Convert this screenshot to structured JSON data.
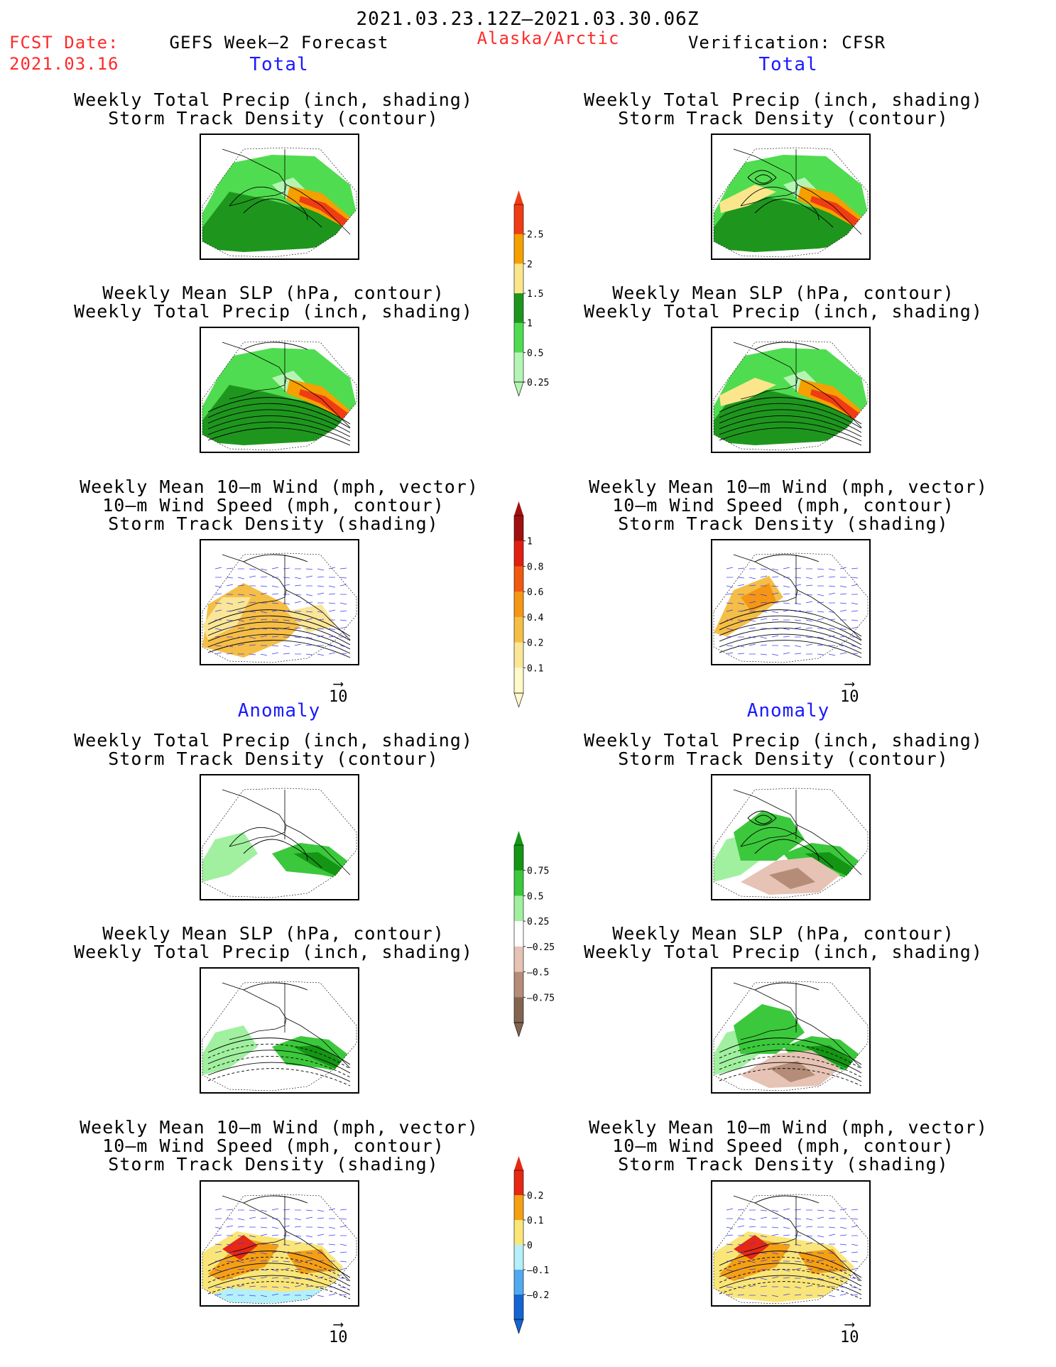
{
  "header": {
    "period": "2021.03.23.12Z–2021.03.30.06Z",
    "fcst_label": "FCST Date:",
    "fcst_date": "2021.03.16",
    "left_title": "GEFS Week–2 Forecast",
    "region": "Alaska/Arctic",
    "right_title": "Verification: CFSR"
  },
  "sections": {
    "total": "Total",
    "anomaly": "Anomaly"
  },
  "titles": {
    "precip_track": [
      "Weekly Total Precip (inch, shading)",
      "Storm Track Density (contour)"
    ],
    "slp_precip": [
      "Weekly Mean SLP (hPa, contour)",
      "Weekly Total Precip (inch, shading)"
    ],
    "wind": [
      "Weekly Mean 10–m Wind (mph, vector)",
      "10–m Wind Speed (mph, contour)",
      "Storm Track Density (shading)"
    ]
  },
  "reference_vector": "10",
  "colorbars": {
    "precip_total": {
      "labels": [
        "2.5",
        "2",
        "1.5",
        "1",
        "0.5",
        "0.25"
      ],
      "colors": [
        "#f03c14",
        "#f5a000",
        "#fce68c",
        "#1e961e",
        "#50dc50",
        "#b4f5b4"
      ]
    },
    "track_total": {
      "labels": [
        "1",
        "0.8",
        "0.6",
        "0.4",
        "0.2",
        "0.1"
      ],
      "colors": [
        "#a01010",
        "#e02010",
        "#f05a10",
        "#f59614",
        "#f5be46",
        "#fae696",
        "#fffac8"
      ]
    },
    "precip_anom": {
      "labels": [
        "0.75",
        "0.5",
        "0.25",
        "–0.25",
        "–0.5",
        "–0.75"
      ],
      "colors": [
        "#149614",
        "#3cc83c",
        "#a0f0a0",
        "#ffffff",
        "#e6c3b4",
        "#b48c78",
        "#826450"
      ]
    },
    "track_anom": {
      "labels": [
        "0.2",
        "0.1",
        "0",
        "–0.1",
        "–0.2"
      ],
      "colors": [
        "#e62814",
        "#f5a014",
        "#fae678",
        "#b4f0fa",
        "#50aaf0",
        "#1464d2"
      ]
    }
  }
}
